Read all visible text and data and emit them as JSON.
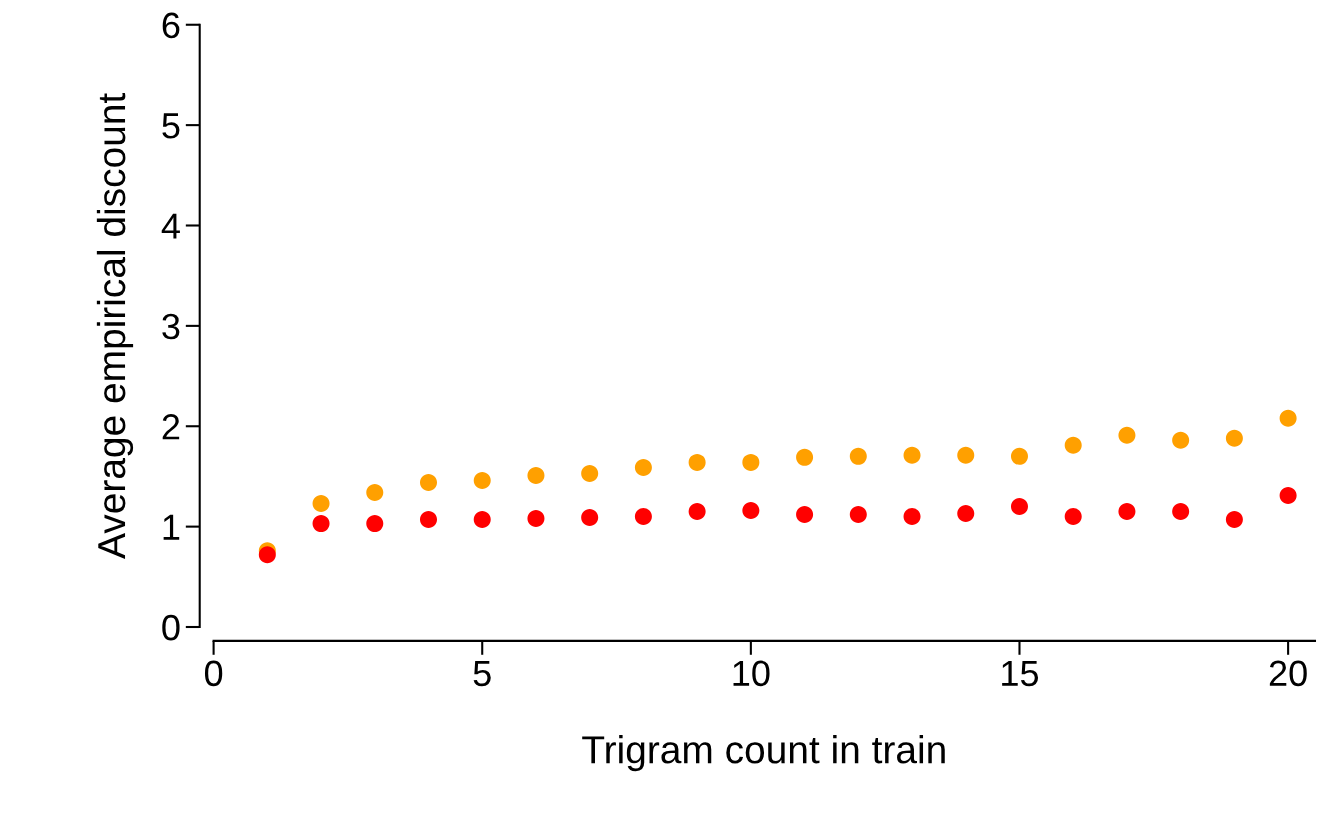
{
  "chart_data": {
    "type": "scatter",
    "xlabel": "Trigram count in train",
    "ylabel": "Average empirical discount",
    "x": [
      1,
      2,
      3,
      4,
      5,
      6,
      7,
      8,
      9,
      10,
      11,
      12,
      13,
      14,
      15,
      16,
      17,
      18,
      19,
      20
    ],
    "series": [
      {
        "color": "#ffa000",
        "values": [
          0.76,
          1.23,
          1.34,
          1.44,
          1.46,
          1.51,
          1.53,
          1.59,
          1.64,
          1.64,
          1.69,
          1.7,
          1.71,
          1.71,
          1.7,
          1.81,
          1.91,
          1.86,
          1.88,
          2.08
        ]
      },
      {
        "color": "#ff0000",
        "values": [
          0.72,
          1.03,
          1.03,
          1.07,
          1.07,
          1.08,
          1.09,
          1.1,
          1.15,
          1.16,
          1.12,
          1.12,
          1.1,
          1.13,
          1.2,
          1.1,
          1.15,
          1.15,
          1.07,
          1.31
        ]
      }
    ],
    "xlim": [
      0,
      20.5
    ],
    "ylim": [
      0,
      6
    ],
    "xticks": [
      0,
      5,
      10,
      15,
      20
    ],
    "yticks": [
      0,
      1,
      2,
      3,
      4,
      5,
      6
    ],
    "marker": "circle",
    "grid": false
  }
}
